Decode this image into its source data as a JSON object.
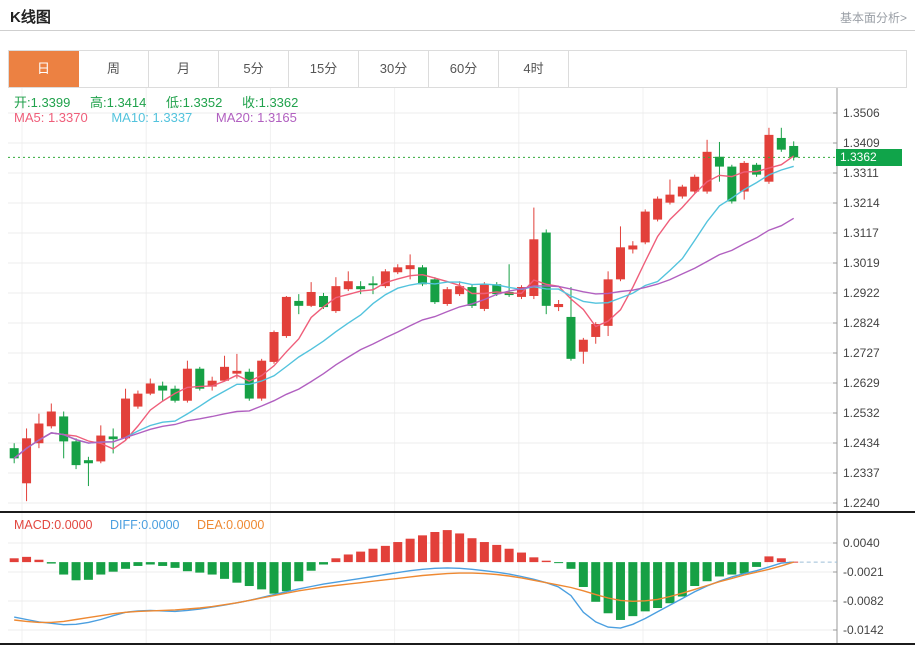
{
  "header": {
    "title": "K线图",
    "link": "基本面分析>"
  },
  "tabs": {
    "items": [
      {
        "label": "日",
        "selected": true
      },
      {
        "label": "周",
        "selected": false
      },
      {
        "label": "月",
        "selected": false
      },
      {
        "label": "5分",
        "selected": false
      },
      {
        "label": "15分",
        "selected": false
      },
      {
        "label": "30分",
        "selected": false
      },
      {
        "label": "60分",
        "selected": false
      },
      {
        "label": "4时",
        "selected": false
      }
    ]
  },
  "overlay": {
    "ohlc_items": [
      "开:1.3399",
      "高:1.3414",
      "低:1.3352",
      "收:1.3362"
    ],
    "ma_items": [
      "MA5: 1.3370",
      "MA10: 1.3337",
      "MA20: 1.3165"
    ],
    "macd_items": [
      "MACD:0.0000",
      "DIFF:0.0000",
      "DEA:0.0000"
    ]
  },
  "colors": {
    "up_red": "#e2403a",
    "down_green": "#16a045",
    "ohlc_text": "#21a24c",
    "ma5": "#ef5e7a",
    "ma10": "#53c3dd",
    "ma20": "#b160c0",
    "macd_label": "#e2473f",
    "diff_blue": "#4b9fe0",
    "dea_orange": "#ee8932",
    "badge_green": "#10a44a",
    "dotted_line": "#33aa3c",
    "tab_orange": "#ec8142"
  },
  "chart_data": {
    "type": "candlestick",
    "title": "K线图",
    "period_selected": "日",
    "current_price_label": "1.3362",
    "current_price": 1.3362,
    "price_axis": [
      "1.3506",
      "1.3409",
      "1.3311",
      "1.3214",
      "1.3117",
      "1.3019",
      "1.2922",
      "1.2824",
      "1.2727",
      "1.2629",
      "1.2532",
      "1.2434",
      "1.2337",
      "1.2240"
    ],
    "price_range": [
      1.224,
      1.3506
    ],
    "ohlc_display": {
      "open": 1.3399,
      "high": 1.3414,
      "low": 1.3352,
      "close": 1.3362
    },
    "ma_display": {
      "MA5": 1.337,
      "MA10": 1.3337,
      "MA20": 1.3165
    },
    "ma_periods": [
      5,
      10,
      20
    ],
    "candles": [
      [
        1.2418,
        1.2434,
        1.2369,
        1.2385
      ],
      [
        1.2304,
        1.2482,
        1.2246,
        1.245
      ],
      [
        1.2434,
        1.253,
        1.2418,
        1.2498
      ],
      [
        1.2489,
        1.2563,
        1.2482,
        1.2537
      ],
      [
        1.2521,
        1.2537,
        1.2385,
        1.244
      ],
      [
        1.244,
        1.245,
        1.235,
        1.2363
      ],
      [
        1.2379,
        1.239,
        1.2295,
        1.2369
      ],
      [
        1.2375,
        1.2492,
        1.2369,
        1.2459
      ],
      [
        1.2456,
        1.2482,
        1.2401,
        1.2447
      ],
      [
        1.245,
        1.2611,
        1.2446,
        1.2579
      ],
      [
        1.2553,
        1.2605,
        1.2546,
        1.2595
      ],
      [
        1.2595,
        1.2644,
        1.259,
        1.2628
      ],
      [
        1.2621,
        1.2634,
        1.2572,
        1.2605
      ],
      [
        1.2611,
        1.2621,
        1.2566,
        1.2572
      ],
      [
        1.2572,
        1.2702,
        1.2566,
        1.2676
      ],
      [
        1.2676,
        1.2682,
        1.2605,
        1.2611
      ],
      [
        1.2618,
        1.265,
        1.2605,
        1.2637
      ],
      [
        1.2637,
        1.2718,
        1.2634,
        1.2682
      ],
      [
        1.266,
        1.2724,
        1.2644,
        1.2669
      ],
      [
        1.2666,
        1.2676,
        1.2572,
        1.2579
      ],
      [
        1.2579,
        1.2708,
        1.2572,
        1.2702
      ],
      [
        1.2698,
        1.28,
        1.2692,
        1.2795
      ],
      [
        1.2782,
        1.2912,
        1.2776,
        1.2909
      ],
      [
        1.2896,
        1.2918,
        1.2853,
        1.288
      ],
      [
        1.288,
        1.2957,
        1.2876,
        1.2925
      ],
      [
        1.2912,
        1.2922,
        1.287,
        1.2876
      ],
      [
        1.2863,
        1.2973,
        1.2857,
        1.2944
      ],
      [
        1.2934,
        1.2992,
        1.2928,
        1.296
      ],
      [
        1.2944,
        1.296,
        1.2918,
        1.2934
      ],
      [
        1.2953,
        1.2976,
        1.2918,
        1.2947
      ],
      [
        1.2944,
        1.2999,
        1.2938,
        1.2992
      ],
      [
        1.2989,
        1.3015,
        1.2983,
        1.3005
      ],
      [
        1.2999,
        1.3047,
        1.2966,
        1.3012
      ],
      [
        1.3005,
        1.3012,
        1.2944,
        1.295
      ],
      [
        1.2966,
        1.2973,
        1.2886,
        1.2892
      ],
      [
        1.2886,
        1.2941,
        1.288,
        1.2934
      ],
      [
        1.2918,
        1.296,
        1.2912,
        1.2944
      ],
      [
        1.2941,
        1.295,
        1.2873,
        1.288
      ],
      [
        1.287,
        1.2957,
        1.2863,
        1.295
      ],
      [
        1.295,
        1.2957,
        1.2912,
        1.2918
      ],
      [
        1.2925,
        1.3015,
        1.2909,
        1.2915
      ],
      [
        1.2909,
        1.2947,
        1.2902,
        1.2941
      ],
      [
        1.2912,
        1.3199,
        1.2902,
        1.3096
      ],
      [
        1.3118,
        1.3128,
        1.2853,
        1.288
      ],
      [
        1.2876,
        1.2899,
        1.2863,
        1.2886
      ],
      [
        1.2844,
        1.2941,
        1.2702,
        1.2708
      ],
      [
        1.2731,
        1.2776,
        1.2692,
        1.277
      ],
      [
        1.2779,
        1.2827,
        1.2757,
        1.2821
      ],
      [
        1.2815,
        1.2992,
        1.2782,
        1.2966
      ],
      [
        1.2966,
        1.3138,
        1.296,
        1.307
      ],
      [
        1.3063,
        1.309,
        1.305,
        1.3076
      ],
      [
        1.3086,
        1.3193,
        1.308,
        1.3186
      ],
      [
        1.316,
        1.3235,
        1.3154,
        1.3228
      ],
      [
        1.3215,
        1.329,
        1.3209,
        1.3241
      ],
      [
        1.3235,
        1.3273,
        1.3228,
        1.3267
      ],
      [
        1.3251,
        1.3306,
        1.3244,
        1.3299
      ],
      [
        1.3251,
        1.3419,
        1.3244,
        1.338
      ],
      [
        1.3364,
        1.3412,
        1.3283,
        1.3332
      ],
      [
        1.3332,
        1.3338,
        1.3212,
        1.3219
      ],
      [
        1.3251,
        1.335,
        1.3225,
        1.3344
      ],
      [
        1.3338,
        1.3344,
        1.3299,
        1.3306
      ],
      [
        1.3283,
        1.3458,
        1.3276,
        1.3435
      ],
      [
        1.3425,
        1.3458,
        1.338,
        1.3387
      ],
      [
        1.3399,
        1.3414,
        1.3352,
        1.3362
      ]
    ],
    "macd": {
      "display": {
        "MACD": 0.0,
        "DIFF": 0.0,
        "DEA": 0.0
      },
      "axis": [
        "0.0040",
        "-0.0021",
        "-0.0082",
        "-0.0142"
      ],
      "axis_range": [
        0.004,
        -0.0142
      ],
      "hist": [
        0.0008,
        0.0011,
        0.0005,
        -0.0003,
        -0.0026,
        -0.0038,
        -0.0037,
        -0.0026,
        -0.002,
        -0.0014,
        -0.0008,
        -0.0005,
        -0.0008,
        -0.0012,
        -0.0019,
        -0.0022,
        -0.0026,
        -0.0035,
        -0.0043,
        -0.005,
        -0.0057,
        -0.0066,
        -0.0061,
        -0.004,
        -0.0018,
        -0.0005,
        0.0008,
        0.0016,
        0.0022,
        0.0028,
        0.0034,
        0.0042,
        0.0049,
        0.0056,
        0.0063,
        0.0067,
        0.006,
        0.005,
        0.0042,
        0.0036,
        0.0028,
        0.002,
        0.001,
        0.0003,
        -0.0002,
        -0.0014,
        -0.0052,
        -0.0083,
        -0.0107,
        -0.0121,
        -0.0113,
        -0.0103,
        -0.0096,
        -0.0086,
        -0.0072,
        -0.005,
        -0.004,
        -0.003,
        -0.0026,
        -0.0024,
        -0.001,
        0.0012,
        0.0008,
        0.0001
      ],
      "diff": [
        -0.0115,
        -0.012,
        -0.0125,
        -0.0128,
        -0.0131,
        -0.013,
        -0.0126,
        -0.012,
        -0.0112,
        -0.0105,
        -0.0102,
        -0.0101,
        -0.0102,
        -0.0103,
        -0.0101,
        -0.0098,
        -0.0094,
        -0.009,
        -0.0085,
        -0.008,
        -0.0074,
        -0.0068,
        -0.0062,
        -0.0056,
        -0.0051,
        -0.0046,
        -0.0042,
        -0.0038,
        -0.0034,
        -0.003,
        -0.0026,
        -0.0022,
        -0.0018,
        -0.0015,
        -0.0013,
        -0.0012,
        -0.0013,
        -0.0015,
        -0.0018,
        -0.0021,
        -0.0025,
        -0.003,
        -0.0036,
        -0.0043,
        -0.0052,
        -0.007,
        -0.0105,
        -0.0125,
        -0.0136,
        -0.0138,
        -0.013,
        -0.0118,
        -0.0104,
        -0.009,
        -0.0076,
        -0.0062,
        -0.005,
        -0.004,
        -0.0031,
        -0.0024,
        -0.0018,
        -0.001,
        -0.0002,
        0.0
      ],
      "dea": [
        -0.0121,
        -0.0124,
        -0.0126,
        -0.0126,
        -0.0124,
        -0.012,
        -0.0116,
        -0.0112,
        -0.0108,
        -0.0105,
        -0.0103,
        -0.0102,
        -0.0101,
        -0.01,
        -0.0098,
        -0.0096,
        -0.0093,
        -0.0089,
        -0.0085,
        -0.008,
        -0.0075,
        -0.007,
        -0.0065,
        -0.006,
        -0.0056,
        -0.0052,
        -0.0049,
        -0.0046,
        -0.0043,
        -0.004,
        -0.0037,
        -0.0034,
        -0.0031,
        -0.0028,
        -0.0026,
        -0.0024,
        -0.0023,
        -0.0023,
        -0.0024,
        -0.0026,
        -0.0029,
        -0.0033,
        -0.0038,
        -0.0043,
        -0.0048,
        -0.0053,
        -0.006,
        -0.0068,
        -0.0075,
        -0.008,
        -0.0082,
        -0.0081,
        -0.0078,
        -0.0072,
        -0.0065,
        -0.0057,
        -0.0049,
        -0.0041,
        -0.0034,
        -0.0027,
        -0.0021,
        -0.0015,
        -0.0008,
        0.0
      ]
    }
  }
}
